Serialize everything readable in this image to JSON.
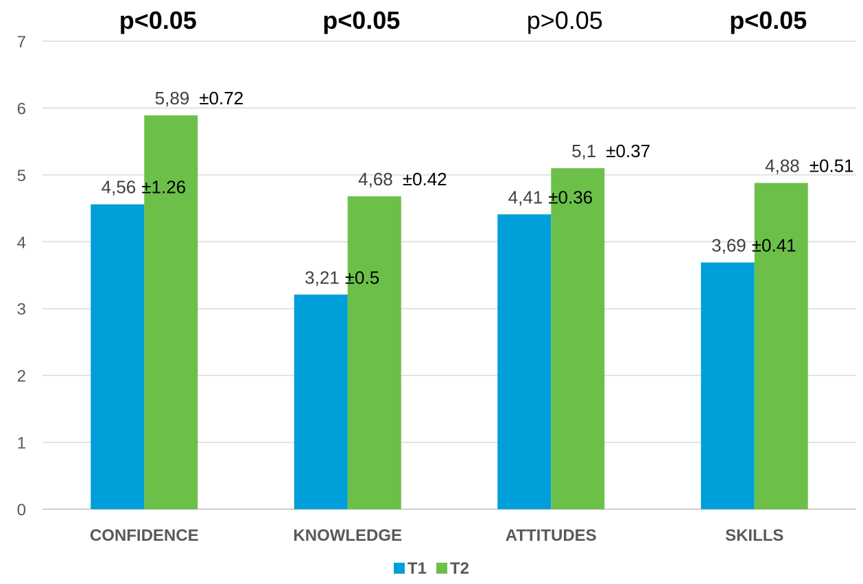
{
  "chart_data": {
    "type": "bar",
    "categories": [
      "CONFIDENCE",
      "KNOWLEDGE",
      "ATTITUDES",
      "SKILLS"
    ],
    "series": [
      {
        "name": "T1",
        "color": "#009fd9",
        "values": [
          4.56,
          3.21,
          4.41,
          3.69
        ],
        "value_labels": [
          "4,56",
          "3,21",
          "4,41",
          "3,69"
        ]
      },
      {
        "name": "T2",
        "color": "#6cc04a",
        "values": [
          5.89,
          4.68,
          5.1,
          4.88
        ],
        "value_labels": [
          "5,89",
          "4,68",
          "5,1",
          "4,88"
        ]
      }
    ],
    "error_annotations": {
      "T1": [
        "±1.26",
        "±0.5",
        "±0.36",
        "±0.41"
      ],
      "T2": [
        "±0.72",
        "±0.42",
        "±0.37",
        "±0.51"
      ]
    },
    "p_values": [
      {
        "text": "p<0.05",
        "bold": true
      },
      {
        "text": "p<0.05",
        "bold": true
      },
      {
        "text": "p>0.05",
        "bold": false
      },
      {
        "text": "p<0.05",
        "bold": true
      }
    ],
    "ylim": [
      0,
      7
    ],
    "yticks": [
      "0",
      "1",
      "2",
      "3",
      "4",
      "5",
      "6",
      "7"
    ],
    "grid": true,
    "legend_position": "bottom",
    "gridline_color": "#d9d9d9",
    "xlabel": "",
    "ylabel": "",
    "title": ""
  }
}
